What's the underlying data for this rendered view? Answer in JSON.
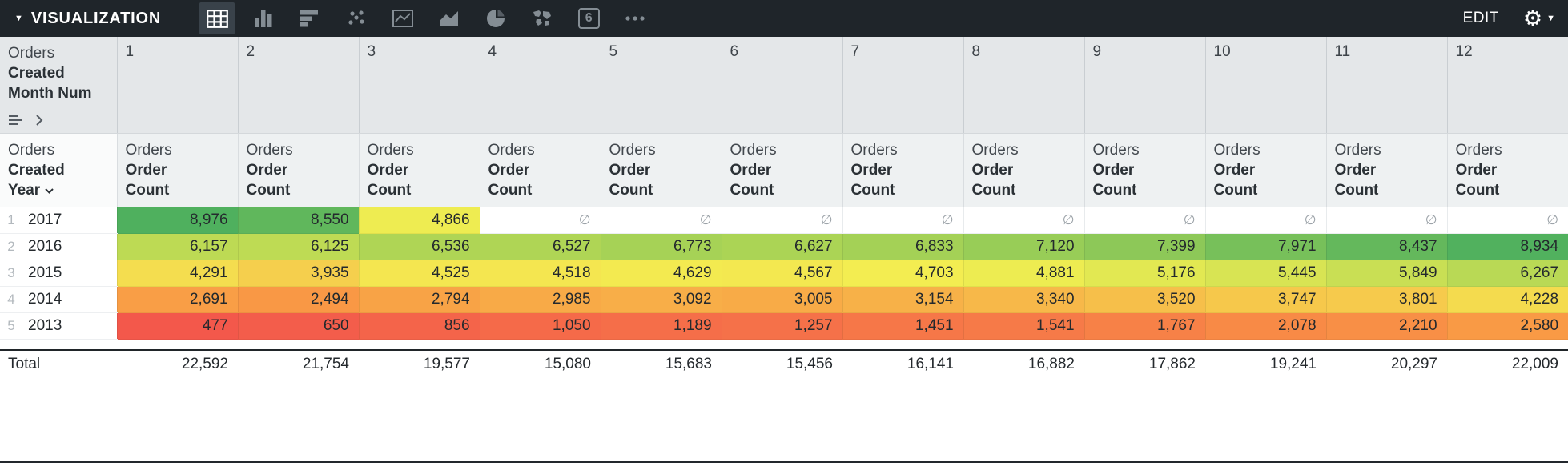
{
  "toolbar": {
    "collapse_caret": "▼",
    "title": "VISUALIZATION",
    "edit_label": "EDIT",
    "gear_glyph": "⚙",
    "settings_caret": "▼",
    "icons": [
      {
        "name": "table-chart",
        "selected": true
      },
      {
        "name": "column-chart",
        "selected": false
      },
      {
        "name": "bar-chart",
        "selected": false
      },
      {
        "name": "scatter-chart",
        "selected": false
      },
      {
        "name": "line-chart",
        "selected": false
      },
      {
        "name": "area-chart",
        "selected": false
      },
      {
        "name": "pie-chart",
        "selected": false
      },
      {
        "name": "map-chart",
        "selected": false
      },
      {
        "name": "single-value",
        "selected": false,
        "glyph": "6"
      },
      {
        "name": "more-options",
        "selected": false
      }
    ]
  },
  "pivot": {
    "corner": {
      "line1": "Orders",
      "line2": "Created",
      "line3": "Month Num"
    },
    "columns": [
      "1",
      "2",
      "3",
      "4",
      "5",
      "6",
      "7",
      "8",
      "9",
      "10",
      "11",
      "12"
    ],
    "row_dim": {
      "line1": "Orders",
      "line2": "Created",
      "line3": "Year"
    },
    "measure": {
      "line1": "Orders",
      "line2": "Order",
      "line3": "Count"
    },
    "null_symbol": "∅",
    "heatmap": {
      "min": 477,
      "max": 8976,
      "stops": [
        "#F3584B",
        "#F99B45",
        "#F3EE51",
        "#A3D156",
        "#4FB05E"
      ]
    },
    "rows": [
      {
        "idx": "1",
        "year": "2017",
        "values": [
          8976,
          8550,
          4866,
          null,
          null,
          null,
          null,
          null,
          null,
          null,
          null,
          null
        ]
      },
      {
        "idx": "2",
        "year": "2016",
        "values": [
          6157,
          6125,
          6536,
          6527,
          6773,
          6627,
          6833,
          7120,
          7399,
          7971,
          8437,
          8934
        ]
      },
      {
        "idx": "3",
        "year": "2015",
        "values": [
          4291,
          3935,
          4525,
          4518,
          4629,
          4567,
          4703,
          4881,
          5176,
          5445,
          5849,
          6267
        ]
      },
      {
        "idx": "4",
        "year": "2014",
        "values": [
          2691,
          2494,
          2794,
          2985,
          3092,
          3005,
          3154,
          3340,
          3520,
          3747,
          3801,
          4228
        ]
      },
      {
        "idx": "5",
        "year": "2013",
        "values": [
          477,
          650,
          856,
          1050,
          1189,
          1257,
          1451,
          1541,
          1767,
          2078,
          2210,
          2580
        ]
      }
    ],
    "total_label": "Total",
    "totals": [
      22592,
      21754,
      19577,
      15080,
      15683,
      15456,
      16141,
      16882,
      17862,
      19241,
      20297,
      22009
    ]
  }
}
